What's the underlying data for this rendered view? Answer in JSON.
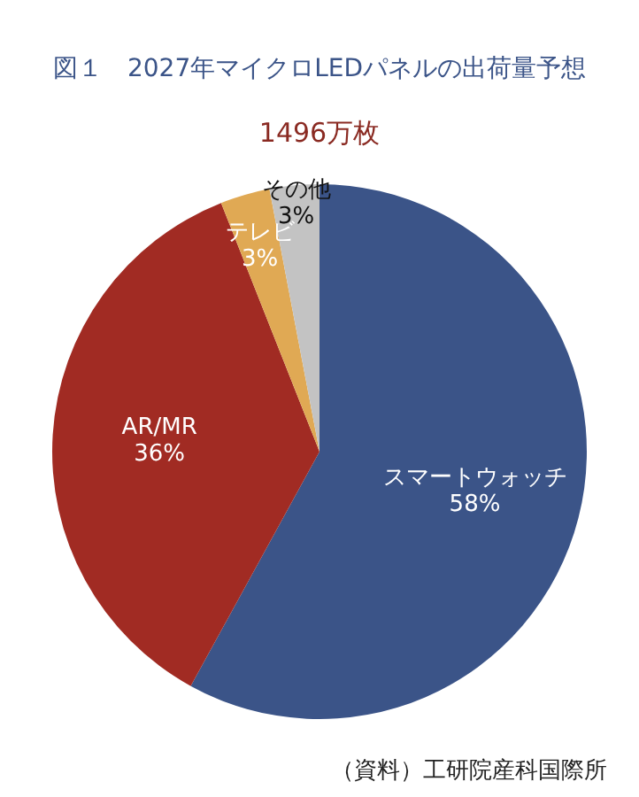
{
  "chart_data": {
    "type": "pie",
    "title": "図１　2027年マイクロLEDパネルの出荷量予想",
    "subtitle": "1496万枚",
    "categories": [
      "スマートウォッチ",
      "AR/MR",
      "テレビ",
      "その他"
    ],
    "values": [
      58,
      36,
      3,
      3
    ],
    "value_labels": [
      "58%",
      "36%",
      "3%",
      "3%"
    ],
    "colors": [
      "#3b5488",
      "#a12b23",
      "#e0a954",
      "#c3c3c3"
    ],
    "legend": false,
    "annotations": [
      "（資料）工研院産科国際所"
    ]
  }
}
